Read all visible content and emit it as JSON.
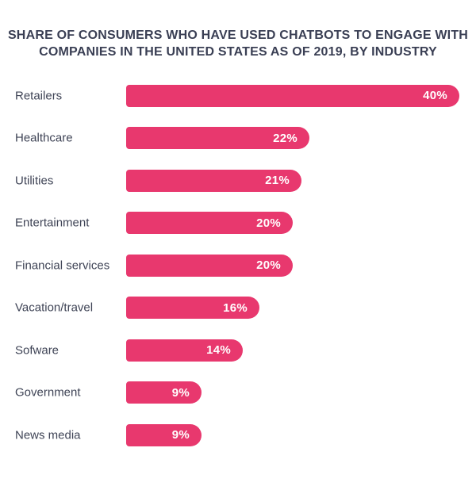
{
  "title": {
    "line1": "SHARE OF CONSUMERS WHO HAVE USED CHATBOTS TO ENGAGE WITH",
    "line2": "COMPANIES IN THE UNITED STATES AS OF 2019, BY INDUSTRY"
  },
  "colors": {
    "bar": "#e8386e",
    "title_text": "#3a3f54",
    "category_text": "#3f4456",
    "value_text": "#ffffff",
    "background": "#ffffff"
  },
  "chart_data": {
    "type": "bar",
    "orientation": "horizontal",
    "title": "SHARE OF CONSUMERS WHO HAVE USED CHATBOTS TO ENGAGE WITH COMPANIES IN THE UNITED STATES AS OF 2019, BY INDUSTRY",
    "categories": [
      "Retailers",
      "Healthcare",
      "Utilities",
      "Entertainment",
      "Financial services",
      "Vacation/travel",
      "Sofware",
      "Government",
      "News media"
    ],
    "values": [
      40,
      22,
      21,
      20,
      20,
      16,
      14,
      9,
      9
    ],
    "value_labels": [
      "40%",
      "22%",
      "21%",
      "20%",
      "20%",
      "16%",
      "14%",
      "9%",
      "9%"
    ],
    "unit": "%",
    "xlim": [
      0,
      40
    ],
    "grid": false,
    "legend": false,
    "value_label_position": "inside-right"
  }
}
